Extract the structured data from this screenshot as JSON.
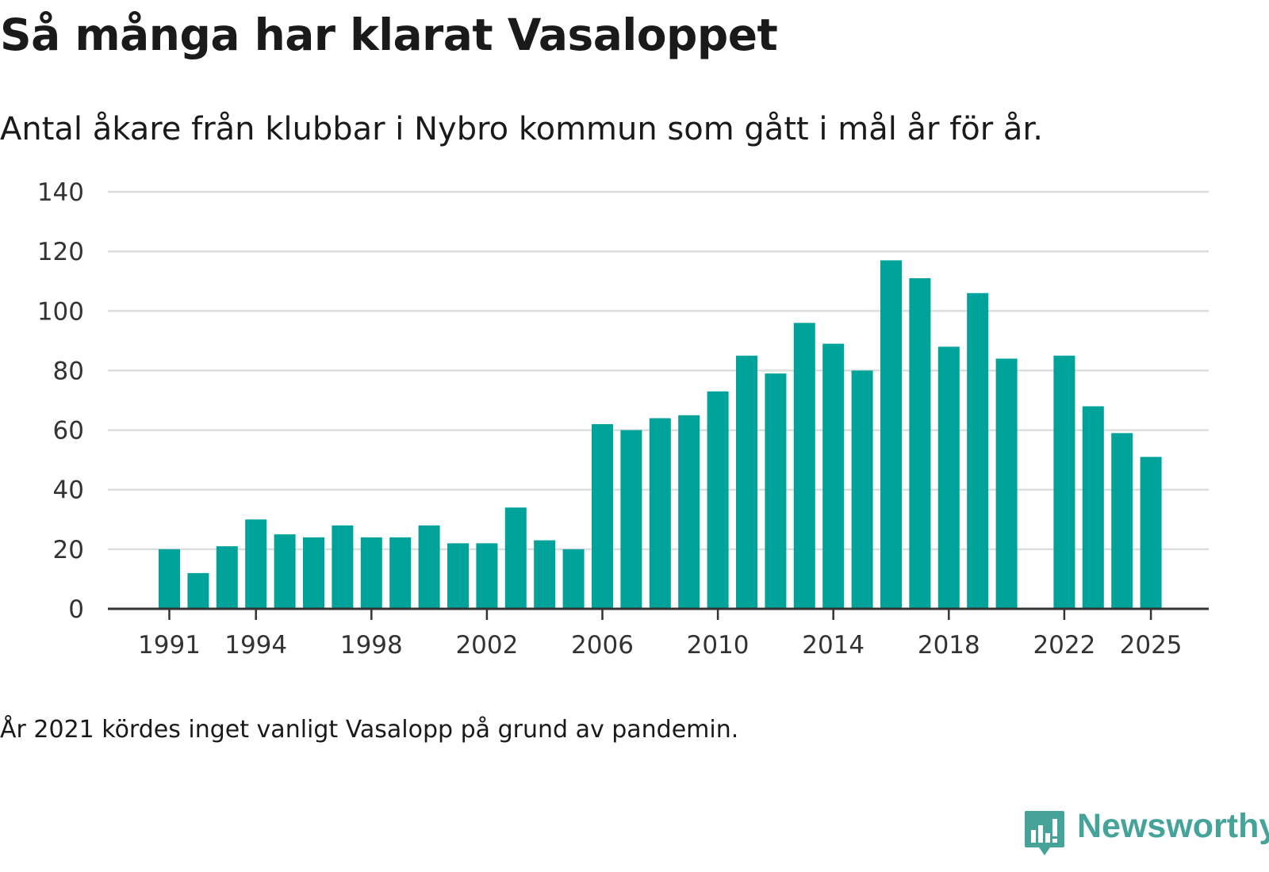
{
  "title": "Så många har klarat Vasaloppet",
  "subtitle": "Antal åkare från klubbar i Nybro kommun som gått i mål år för år.",
  "footnote": "År 2021 kördes inget vanligt Vasalopp på grund av pandemin.",
  "brand": {
    "name": "Newsworthy",
    "icon": "newsworthy-logo-icon",
    "color": "#46a39a"
  },
  "colors": {
    "bar": "#00a399",
    "grid": "#dddddd",
    "axis": "#333333"
  },
  "chart_data": {
    "type": "bar",
    "x": [
      1991,
      1992,
      1993,
      1994,
      1995,
      1996,
      1997,
      1998,
      1999,
      2000,
      2001,
      2002,
      2003,
      2004,
      2005,
      2006,
      2007,
      2008,
      2009,
      2010,
      2011,
      2012,
      2013,
      2014,
      2015,
      2016,
      2017,
      2018,
      2019,
      2020,
      2022,
      2023,
      2024,
      2025
    ],
    "values": [
      20,
      12,
      21,
      30,
      25,
      24,
      28,
      24,
      24,
      28,
      22,
      22,
      34,
      23,
      20,
      62,
      60,
      64,
      65,
      73,
      85,
      79,
      96,
      89,
      80,
      117,
      111,
      88,
      106,
      84,
      85,
      68,
      59,
      51
    ],
    "x_ticks": [
      1991,
      1994,
      1998,
      2002,
      2006,
      2010,
      2014,
      2018,
      2022,
      2025
    ],
    "y_ticks": [
      0,
      20,
      40,
      60,
      80,
      100,
      120,
      140
    ],
    "ylim": [
      0,
      140
    ],
    "xlim": [
      1990.5,
      2025.5
    ],
    "grid": true,
    "legend": "none"
  }
}
